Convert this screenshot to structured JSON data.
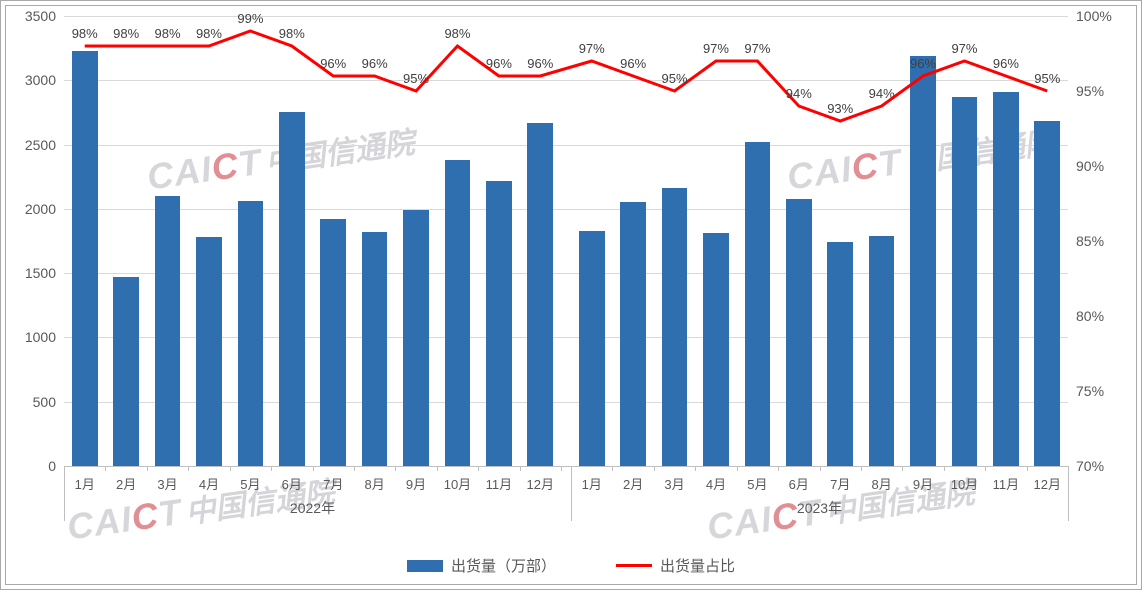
{
  "chart": {
    "type": "bar+line",
    "background_color": "#ffffff",
    "border_color": "#a9a9a9",
    "grid_color": "#d9d9d9",
    "text_color": "#595959",
    "label_fontsize": 14,
    "datalabel_fontsize": 13,
    "bar_color": "#2f6eaf",
    "line_color": "#ff0000",
    "line_width": 3,
    "bar_width_ratio": 0.62,
    "y_left": {
      "min": 0,
      "max": 3500,
      "step": 500,
      "ticks": [
        0,
        500,
        1000,
        1500,
        2000,
        2500,
        3000,
        3500
      ]
    },
    "y_right": {
      "min": 70,
      "max": 100,
      "step": 5,
      "ticks": [
        70,
        75,
        80,
        85,
        90,
        95,
        100
      ],
      "suffix": "%"
    },
    "years": [
      {
        "label": "2022年",
        "months": [
          "1月",
          "2月",
          "3月",
          "4月",
          "5月",
          "6月",
          "7月",
          "8月",
          "9月",
          "10月",
          "11月",
          "12月"
        ]
      },
      {
        "label": "2023年",
        "months": [
          "1月",
          "2月",
          "3月",
          "4月",
          "5月",
          "6月",
          "7月",
          "8月",
          "9月",
          "10月",
          "11月",
          "12月"
        ]
      }
    ],
    "bar_values": [
      3230,
      1470,
      2100,
      1780,
      2060,
      2750,
      1920,
      1820,
      1990,
      2380,
      2220,
      2670,
      1830,
      2050,
      2160,
      1810,
      2520,
      2080,
      1740,
      1790,
      3190,
      2870,
      2910,
      2680
    ],
    "line_values_pct": [
      98,
      98,
      98,
      98,
      99,
      98,
      96,
      96,
      95,
      98,
      96,
      96,
      97,
      96,
      95,
      97,
      97,
      94,
      93,
      94,
      96,
      97,
      96,
      95
    ],
    "line_labels": [
      "98%",
      "98%",
      "98%",
      "98%",
      "99%",
      "98%",
      "96%",
      "96%",
      "95%",
      "98%",
      "96%",
      "96%",
      "97%",
      "96%",
      "95%",
      "97%",
      "97%",
      "94%",
      "93%",
      "94%",
      "96%",
      "97%",
      "96%",
      "95%"
    ],
    "legend": {
      "bar_label": "出货量（万部）",
      "line_label": "出货量占比"
    },
    "watermark": {
      "logo_prefix": "CAI",
      "logo_accent": "C",
      "logo_suffix": "T",
      "text": "中国信通院"
    }
  }
}
